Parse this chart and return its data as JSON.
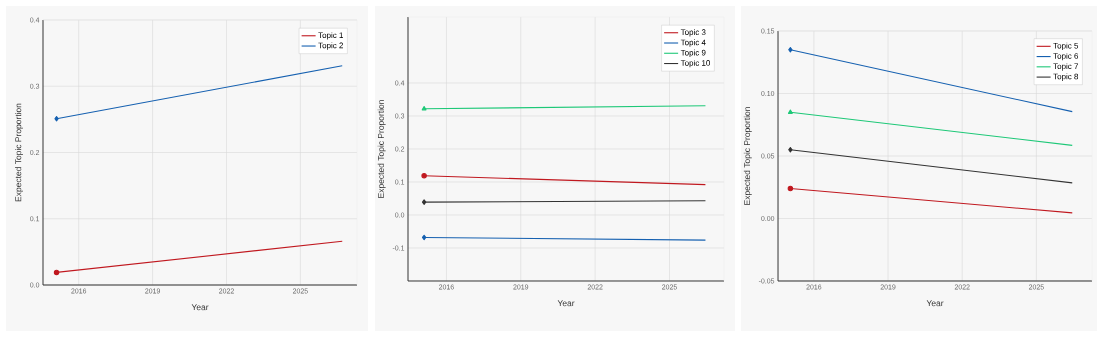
{
  "chart_data": [
    {
      "type": "line",
      "xlabel": "Year",
      "ylabel": "Expected Topic Proportion",
      "x": [
        2015.1,
        2026.7
      ],
      "xlim": [
        2014.55,
        2027.3
      ],
      "xticks": [
        2016,
        2019,
        2022,
        2025
      ],
      "ylim": [
        0,
        0.4
      ],
      "yticks": [
        {
          "value": 0,
          "label": "0.0"
        },
        0.1,
        0.2,
        0.3,
        0.4
      ],
      "grid": true,
      "legend": "top right",
      "series": [
        {
          "name": "Topic 1",
          "color": "#c0181f",
          "values": [
            0.019,
            0.066
          ],
          "marker": "circle"
        },
        {
          "name": "Topic 2",
          "color": "#1560b0",
          "values": [
            0.251,
            0.331
          ],
          "marker": "diamond"
        }
      ]
    },
    {
      "type": "line",
      "xlabel": "Year",
      "ylabel": "Expected Topic Proportion",
      "x": [
        2015.1,
        2026.45
      ],
      "xlim": [
        2014.45,
        2027.2
      ],
      "xticks": [
        2016,
        2019,
        2022,
        2025
      ],
      "ylim": [
        -0.2,
        0.6
      ],
      "yticks": [
        -0.1,
        {
          "value": 0,
          "label": "0.0"
        },
        0.1,
        0.2,
        0.3,
        0.4
      ],
      "grid": true,
      "legend": "top right",
      "series": [
        {
          "name": "Topic 3",
          "color": "#c0181f",
          "values": [
            0.119,
            0.092
          ],
          "marker": "circle"
        },
        {
          "name": "Topic 4",
          "color": "#1560b0",
          "values": [
            -0.068,
            -0.076
          ],
          "marker": "diamond"
        },
        {
          "name": "Topic 9",
          "color": "#1ec878",
          "values": [
            0.322,
            0.331
          ],
          "marker": "triangle"
        },
        {
          "name": "Topic 10",
          "color": "#333333",
          "values": [
            0.039,
            0.043
          ],
          "marker": "diamond"
        }
      ]
    },
    {
      "type": "line",
      "xlabel": "Year",
      "ylabel": "Expected Topic Proportion",
      "x": [
        2015.05,
        2026.45
      ],
      "xlim": [
        2014.55,
        2027.25
      ],
      "xticks": [
        2016,
        2019,
        2022,
        2025
      ],
      "ylim": [
        -0.05,
        0.15
      ],
      "yticks": [
        {
          "value": -0.05,
          "label": "-0.05"
        },
        {
          "value": 0,
          "label": "0.00"
        },
        0.05,
        {
          "value": 0.1,
          "label": "0.10"
        },
        0.15
      ],
      "grid": true,
      "legend": "top right",
      "series": [
        {
          "name": "Topic 5",
          "color": "#c0181f",
          "values": [
            0.024,
            0.0045
          ],
          "marker": "circle"
        },
        {
          "name": "Topic 6",
          "color": "#1560b0",
          "values": [
            0.135,
            0.0855
          ],
          "marker": "diamond"
        },
        {
          "name": "Topic 7",
          "color": "#1ec878",
          "values": [
            0.085,
            0.0585
          ],
          "marker": "triangle"
        },
        {
          "name": "Topic 8",
          "color": "#333333",
          "values": [
            0.055,
            0.0285
          ],
          "marker": "diamond"
        }
      ]
    }
  ]
}
